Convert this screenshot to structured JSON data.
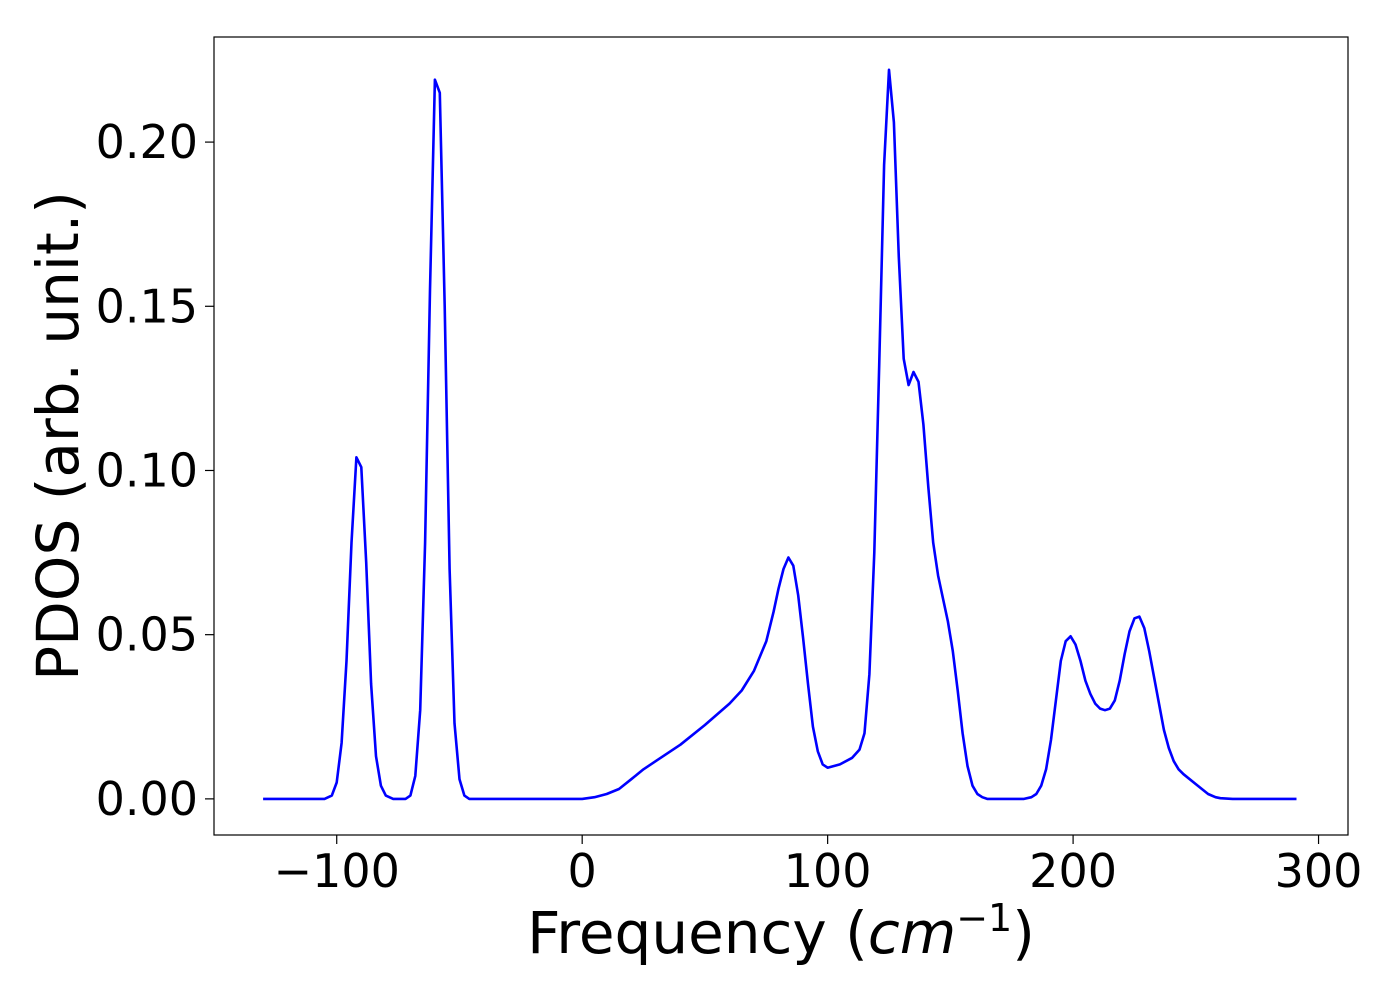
{
  "chart_data": {
    "type": "line",
    "title": "",
    "xlabel": {
      "prefix": "Frequency (",
      "italic": "cm",
      "sup": "−1",
      "suffix": ")"
    },
    "ylabel": "PDOS (arb. unit.)",
    "xlim": [
      -150,
      312
    ],
    "ylim": [
      -0.011,
      0.232
    ],
    "xticks": [
      -100,
      0,
      100,
      200,
      300
    ],
    "xtick_labels": [
      "−100",
      "0",
      "100",
      "200",
      "300"
    ],
    "yticks": [
      0.0,
      0.05,
      0.1,
      0.15,
      0.2
    ],
    "ytick_labels": [
      "0.00",
      "0.05",
      "0.10",
      "0.15",
      "0.20"
    ],
    "grid": false,
    "legend": "none",
    "series": [
      {
        "color": "#0000ff",
        "x": [
          -130,
          -105,
          -102,
          -100,
          -98,
          -96,
          -94,
          -92,
          -90,
          -88,
          -86,
          -84,
          -82,
          -80,
          -77,
          -75,
          -72,
          -70,
          -68,
          -66,
          -64,
          -62,
          -60,
          -58,
          -56,
          -54,
          -52,
          -50,
          -48,
          -46,
          -44,
          -40,
          -20,
          0,
          5,
          10,
          15,
          20,
          25,
          30,
          40,
          50,
          60,
          65,
          70,
          75,
          78,
          80,
          82,
          84,
          86,
          88,
          90,
          92,
          94,
          96,
          98,
          100,
          105,
          110,
          113,
          115,
          117,
          119,
          121,
          123,
          125,
          127,
          129,
          131,
          133,
          135,
          137,
          139,
          141,
          143,
          145,
          147,
          149,
          151,
          153,
          155,
          157,
          159,
          161,
          163,
          165,
          170,
          175,
          180,
          183,
          185,
          187,
          189,
          191,
          193,
          195,
          197,
          199,
          201,
          203,
          205,
          207,
          209,
          211,
          213,
          215,
          217,
          219,
          221,
          223,
          225,
          227,
          229,
          231,
          233,
          235,
          237,
          239,
          241,
          243,
          245,
          250,
          255,
          258,
          260,
          265,
          270,
          280,
          291
        ],
        "y": [
          0.0,
          0.0,
          0.001,
          0.005,
          0.017,
          0.042,
          0.078,
          0.104,
          0.101,
          0.072,
          0.035,
          0.013,
          0.004,
          0.001,
          0.0,
          0.0,
          0.0,
          0.001,
          0.007,
          0.027,
          0.078,
          0.155,
          0.219,
          0.215,
          0.15,
          0.07,
          0.023,
          0.006,
          0.001,
          0.0,
          0.0,
          0.0,
          0.0,
          0.0,
          0.0005,
          0.0015,
          0.003,
          0.006,
          0.009,
          0.0115,
          0.0165,
          0.0225,
          0.029,
          0.033,
          0.039,
          0.048,
          0.057,
          0.064,
          0.07,
          0.0735,
          0.071,
          0.062,
          0.049,
          0.035,
          0.022,
          0.0145,
          0.0105,
          0.0095,
          0.0105,
          0.0125,
          0.015,
          0.02,
          0.038,
          0.075,
          0.132,
          0.193,
          0.222,
          0.206,
          0.165,
          0.134,
          0.126,
          0.13,
          0.127,
          0.114,
          0.095,
          0.078,
          0.068,
          0.061,
          0.054,
          0.045,
          0.033,
          0.02,
          0.01,
          0.004,
          0.0015,
          0.0005,
          0.0,
          0.0,
          0.0,
          0.0,
          0.0005,
          0.0015,
          0.004,
          0.009,
          0.018,
          0.03,
          0.042,
          0.048,
          0.0495,
          0.047,
          0.042,
          0.036,
          0.032,
          0.029,
          0.0275,
          0.027,
          0.0275,
          0.03,
          0.036,
          0.044,
          0.051,
          0.055,
          0.0555,
          0.052,
          0.045,
          0.037,
          0.029,
          0.021,
          0.0155,
          0.0115,
          0.009,
          0.0075,
          0.0045,
          0.0015,
          0.0005,
          0.0002,
          0.0,
          0.0,
          0.0,
          0.0
        ]
      }
    ]
  }
}
